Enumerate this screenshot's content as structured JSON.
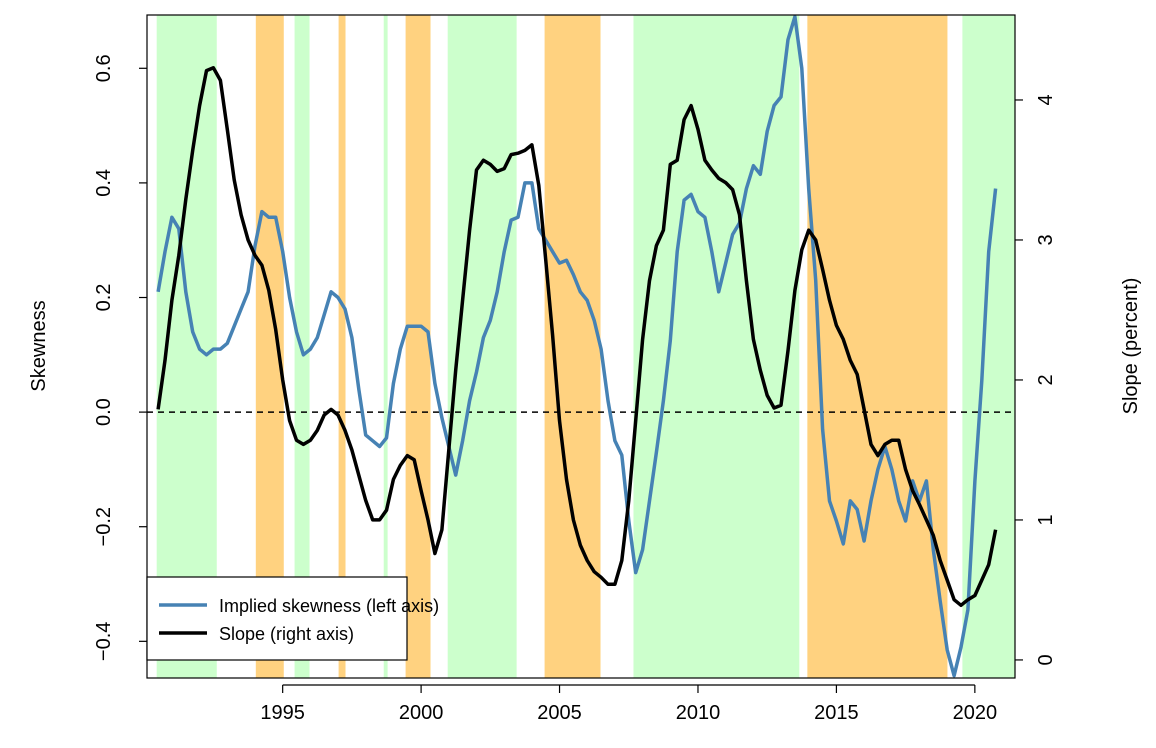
{
  "chart_data": {
    "type": "line",
    "y_label": "Skewness",
    "y2_label": "Slope (percent)",
    "xlim": [
      1990.1,
      2021.45
    ],
    "ylim": [
      -0.464,
      0.693
    ],
    "y2lim": [
      -0.129,
      4.607
    ],
    "xticks": [
      1995,
      2000,
      2005,
      2010,
      2015,
      2020
    ],
    "yticks": [
      {
        "value": -0.4,
        "label": "−0.4"
      },
      {
        "value": -0.2,
        "label": "−0.2"
      },
      {
        "value": 0,
        "label": "0.0"
      },
      0.2,
      0.4,
      0.6
    ],
    "y2ticks": [
      0,
      1,
      2,
      3,
      4
    ],
    "hline": 0,
    "legend": "bottomleft",
    "shading": [
      {
        "x": [
          1990.45,
          1992.62
        ],
        "color": "#ccffcc"
      },
      {
        "x": [
          1994.03,
          1995.04
        ],
        "color": "#ffd280"
      },
      {
        "x": [
          1995.43,
          1995.97
        ],
        "color": "#ccffcc"
      },
      {
        "x": [
          1997.02,
          1997.27
        ],
        "color": "#ffd280"
      },
      {
        "x": [
          1998.65,
          1998.79
        ],
        "color": "#ccffcc"
      },
      {
        "x": [
          1999.44,
          2000.34
        ],
        "color": "#ffd280"
      },
      {
        "x": [
          2000.96,
          2003.45
        ],
        "color": "#ccffcc"
      },
      {
        "x": [
          2004.46,
          2006.48
        ],
        "color": "#ffd280"
      },
      {
        "x": [
          2007.67,
          2013.66
        ],
        "color": "#ccffcc"
      },
      {
        "x": [
          2013.95,
          2019.01
        ],
        "color": "#ffd280"
      },
      {
        "x": [
          2019.55,
          2021.45
        ],
        "color": "#ccffcc"
      }
    ],
    "x": [
      1990.5,
      1990.75,
      1991,
      1991.25,
      1991.5,
      1991.75,
      1992,
      1992.25,
      1992.5,
      1992.75,
      1993,
      1993.25,
      1993.5,
      1993.75,
      1994,
      1994.25,
      1994.5,
      1994.75,
      1995,
      1995.25,
      1995.5,
      1995.75,
      1996,
      1996.25,
      1996.5,
      1996.75,
      1997,
      1997.25,
      1997.5,
      1997.75,
      1998,
      1998.25,
      1998.5,
      1998.75,
      1999,
      1999.25,
      1999.5,
      1999.75,
      2000,
      2000.25,
      2000.5,
      2000.75,
      2001,
      2001.25,
      2001.5,
      2001.75,
      2002,
      2002.25,
      2002.5,
      2002.75,
      2003,
      2003.25,
      2003.5,
      2003.75,
      2004,
      2004.25,
      2004.5,
      2004.75,
      2005,
      2005.25,
      2005.5,
      2005.75,
      2006,
      2006.25,
      2006.5,
      2006.75,
      2007,
      2007.25,
      2007.5,
      2007.75,
      2008,
      2008.25,
      2008.5,
      2008.75,
      2009,
      2009.25,
      2009.5,
      2009.75,
      2010,
      2010.25,
      2010.5,
      2010.75,
      2011,
      2011.25,
      2011.5,
      2011.75,
      2012,
      2012.25,
      2012.5,
      2012.75,
      2013,
      2013.25,
      2013.5,
      2013.75,
      2014,
      2014.25,
      2014.5,
      2014.75,
      2015,
      2015.25,
      2015.5,
      2015.75,
      2016,
      2016.25,
      2016.5,
      2016.75,
      2017,
      2017.25,
      2017.5,
      2017.75,
      2018,
      2018.25,
      2018.5,
      2018.75,
      2019,
      2019.25,
      2019.5,
      2019.75,
      2020,
      2020.25,
      2020.5,
      2020.75
    ],
    "series": [
      {
        "name": "Implied skewness (left axis)",
        "color": "#4682b4",
        "axis": "y",
        "values": [
          0.21,
          0.28,
          0.34,
          0.32,
          0.21,
          0.14,
          0.11,
          0.1,
          0.11,
          0.11,
          0.12,
          0.15,
          0.18,
          0.21,
          0.29,
          0.35,
          0.34,
          0.34,
          0.28,
          0.2,
          0.14,
          0.1,
          0.11,
          0.13,
          0.17,
          0.21,
          0.2,
          0.18,
          0.13,
          0.04,
          -0.04,
          -0.05,
          -0.06,
          -0.045,
          0.05,
          0.11,
          0.15,
          0.15,
          0.15,
          0.14,
          0.05,
          -0.01,
          -0.06,
          -0.11,
          -0.05,
          0.02,
          0.07,
          0.13,
          0.16,
          0.21,
          0.28,
          0.335,
          0.34,
          0.4,
          0.4,
          0.32,
          0.3,
          0.28,
          0.26,
          0.265,
          0.24,
          0.21,
          0.195,
          0.16,
          0.11,
          0.02,
          -0.05,
          -0.075,
          -0.19,
          -0.28,
          -0.24,
          -0.155,
          -0.07,
          0.02,
          0.125,
          0.28,
          0.37,
          0.38,
          0.35,
          0.34,
          0.28,
          0.21,
          0.26,
          0.31,
          0.33,
          0.39,
          0.43,
          0.415,
          0.49,
          0.535,
          0.55,
          0.65,
          0.69,
          0.6,
          0.39,
          0.23,
          -0.03,
          -0.155,
          -0.19,
          -0.23,
          -0.155,
          -0.17,
          -0.225,
          -0.155,
          -0.1,
          -0.06,
          -0.1,
          -0.155,
          -0.19,
          -0.12,
          -0.155,
          -0.12,
          -0.24,
          -0.33,
          -0.415,
          -0.46,
          -0.41,
          -0.345,
          -0.12,
          0.055,
          0.28,
          0.39
        ]
      },
      {
        "name": "Slope (right axis)",
        "color": "#000000",
        "axis": "y2",
        "values": [
          1.79,
          2.14,
          2.57,
          2.89,
          3.29,
          3.64,
          3.96,
          4.21,
          4.23,
          4.14,
          3.79,
          3.43,
          3.18,
          3.0,
          2.89,
          2.82,
          2.64,
          2.36,
          2.0,
          1.71,
          1.57,
          1.54,
          1.57,
          1.64,
          1.75,
          1.79,
          1.75,
          1.64,
          1.5,
          1.32,
          1.14,
          1.0,
          1.0,
          1.07,
          1.29,
          1.39,
          1.46,
          1.43,
          1.21,
          1.0,
          0.76,
          0.93,
          1.5,
          2.07,
          2.57,
          3.07,
          3.5,
          3.57,
          3.54,
          3.49,
          3.51,
          3.61,
          3.62,
          3.64,
          3.68,
          3.39,
          2.86,
          2.32,
          1.71,
          1.29,
          1.0,
          0.82,
          0.71,
          0.63,
          0.59,
          0.54,
          0.54,
          0.71,
          1.14,
          1.71,
          2.29,
          2.71,
          2.96,
          3.07,
          3.54,
          3.57,
          3.86,
          3.96,
          3.79,
          3.57,
          3.5,
          3.44,
          3.41,
          3.36,
          3.18,
          2.71,
          2.29,
          2.07,
          1.89,
          1.8,
          1.82,
          2.21,
          2.64,
          2.93,
          3.07,
          3.0,
          2.79,
          2.57,
          2.39,
          2.29,
          2.14,
          2.04,
          1.79,
          1.54,
          1.46,
          1.54,
          1.57,
          1.57,
          1.36,
          1.21,
          1.11,
          1.0,
          0.89,
          0.71,
          0.57,
          0.43,
          0.39,
          0.43,
          0.46,
          0.57,
          0.68,
          0.93
        ]
      }
    ]
  }
}
